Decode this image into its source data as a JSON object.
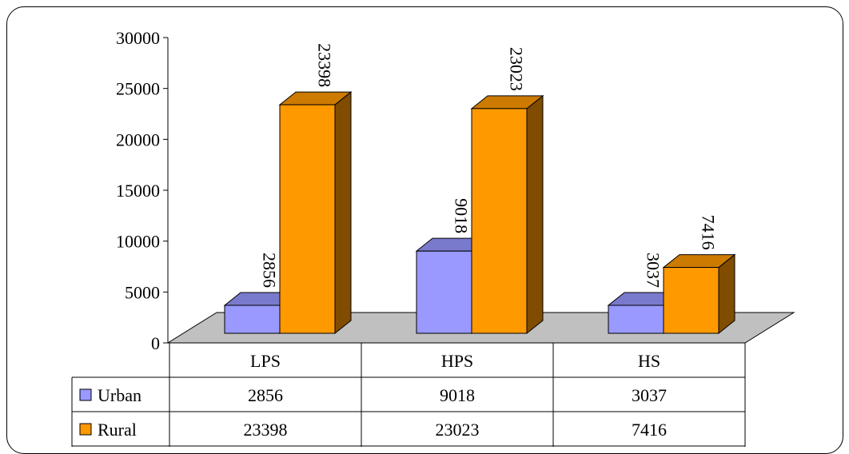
{
  "chart_data": {
    "type": "bar",
    "categories": [
      "LPS",
      "HPS",
      "HS"
    ],
    "series": [
      {
        "name": "Urban",
        "values": [
          2856,
          9018,
          3037
        ],
        "color": "#9999FF",
        "side_color": "#4C4C80",
        "top_color": "#7A7ACC"
      },
      {
        "name": "Rural",
        "values": [
          23398,
          23023,
          7416
        ],
        "color": "#FF9900",
        "side_color": "#804C00",
        "top_color": "#CC7A00"
      }
    ],
    "data_labels": [
      [
        "2856",
        "9018",
        "3037"
      ],
      [
        "23398",
        "23023",
        "7416"
      ]
    ],
    "ylim": [
      0,
      30000
    ],
    "yticks": [
      0,
      5000,
      10000,
      15000,
      20000,
      25000,
      30000
    ],
    "ytick_labels": [
      "0",
      "5000",
      "10000",
      "15000",
      "20000",
      "25000",
      "30000"
    ],
    "data_table": true,
    "floor_color": "#C0C0C0",
    "title": "",
    "xlabel": "",
    "ylabel": ""
  }
}
